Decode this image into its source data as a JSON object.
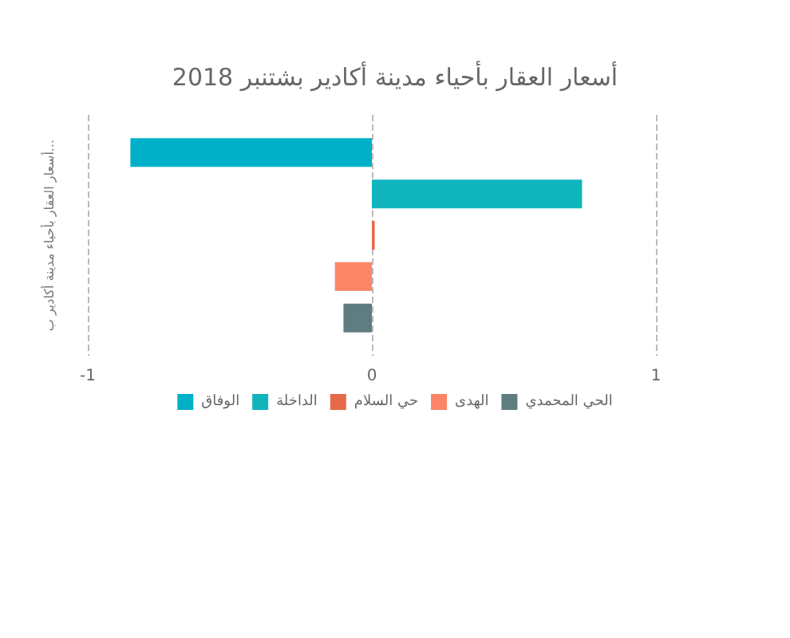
{
  "chart_data": {
    "type": "bar",
    "orientation": "horizontal",
    "title": "أسعار العقار بأحياء مدينة أكادير بشتنبر 2018",
    "ylabel": "أسعار العقار بأحياء مدينة أكادير ب...",
    "categories": [
      null
    ],
    "series": [
      {
        "name": "الوفاق",
        "color": "#00b0c8",
        "values": [
          -0.85
        ]
      },
      {
        "name": "الداخلة",
        "color": "#10b4bc",
        "values": [
          0.74
        ]
      },
      {
        "name": "حي السلام",
        "color": "#e8694a",
        "values": [
          0.01
        ]
      },
      {
        "name": "الهدى",
        "color": "#fb8566",
        "values": [
          -0.13
        ]
      },
      {
        "name": "الحي المحمدي",
        "color": "#5f7c80",
        "values": [
          -0.1
        ]
      }
    ],
    "xlim": [
      -1,
      1
    ],
    "xticks": [
      -1,
      0,
      1
    ],
    "grid": "x",
    "legend": "bottom"
  }
}
